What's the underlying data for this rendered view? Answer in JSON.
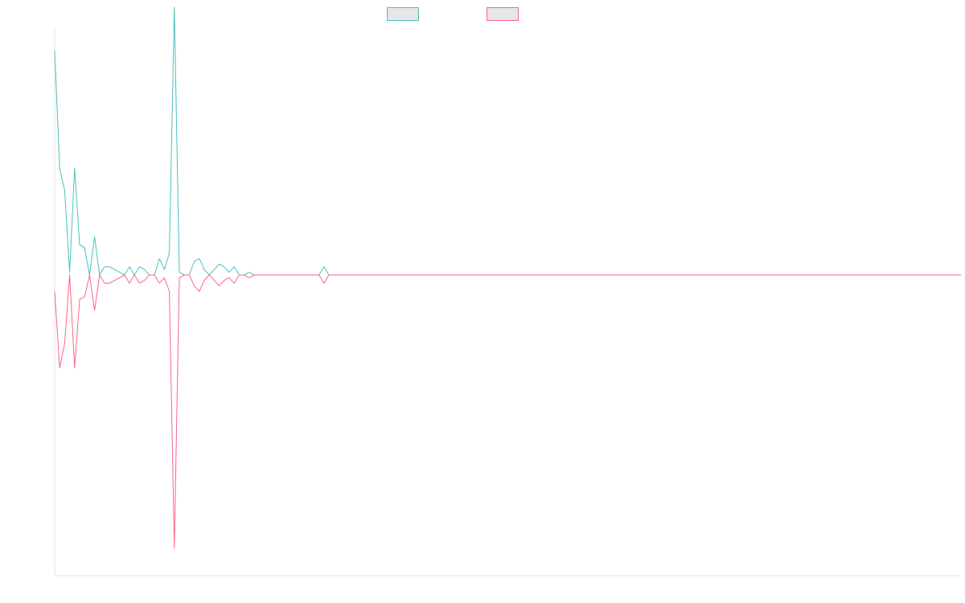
{
  "chart_data": {
    "type": "line",
    "title": "",
    "xlabel": "",
    "ylabel": "",
    "grid": false,
    "legend_position": "top-center",
    "x_start": 0,
    "ylim": [
      -55,
      45
    ],
    "series": [
      {
        "color": "#4bc0c0",
        "swatch_fill": "#e6e6e6",
        "values": [
          41,
          19.5,
          15.5,
          0.5,
          19.5,
          5.5,
          5,
          0,
          7,
          0,
          1.5,
          1.5,
          1,
          0.5,
          0,
          1.5,
          0,
          1.5,
          1,
          0,
          0,
          3,
          1,
          4,
          49,
          0.5,
          0,
          0,
          2.5,
          3,
          1,
          0,
          1,
          2,
          1.5,
          0.5,
          1.5,
          0,
          0,
          0.5,
          0,
          0,
          0,
          0,
          0,
          0,
          0,
          0,
          0,
          0,
          0,
          0,
          0,
          0,
          1.5,
          0,
          0,
          0,
          0,
          0,
          0,
          0,
          0,
          0,
          0,
          0,
          0,
          0,
          0,
          0,
          0,
          0,
          0,
          0,
          0,
          0,
          0,
          0,
          0,
          0,
          0,
          0,
          0,
          0,
          0,
          0,
          0,
          0,
          0,
          0,
          0,
          0,
          0,
          0,
          0,
          0,
          0,
          0,
          0,
          0,
          0,
          0,
          0,
          0,
          0,
          0,
          0,
          0,
          0,
          0,
          0,
          0,
          0,
          0,
          0,
          0,
          0,
          0,
          0,
          0,
          0,
          0,
          0,
          0,
          0,
          0,
          0,
          0,
          0,
          0,
          0,
          0,
          0,
          0,
          0,
          0,
          0,
          0,
          0,
          0,
          0,
          0,
          0,
          0,
          0,
          0,
          0,
          0,
          0,
          0,
          0,
          0,
          0,
          0,
          0,
          0,
          0,
          0,
          0,
          0,
          0,
          0,
          0,
          0,
          0,
          0,
          0,
          0,
          0,
          0,
          0,
          0,
          0,
          0,
          0,
          0,
          0
        ]
      },
      {
        "color": "#ff6384",
        "swatch_fill": "#e6e6e6",
        "values": [
          -3,
          -17,
          -12.5,
          0,
          -17,
          -4.5,
          -4,
          0,
          -6.5,
          0,
          -1.5,
          -1.5,
          -1,
          -0.5,
          0,
          -1.5,
          0,
          -1.5,
          -1,
          0,
          0,
          -1.5,
          -0.5,
          -3,
          -50,
          -0.5,
          0,
          0,
          -2,
          -3,
          -1,
          0,
          -1,
          -2,
          -1,
          -0.5,
          -1.5,
          0,
          0,
          -0.5,
          0,
          0,
          0,
          0,
          0,
          0,
          0,
          0,
          0,
          0,
          0,
          0,
          0,
          0,
          -1.5,
          0,
          0,
          0,
          0,
          0,
          0,
          0,
          0,
          0,
          0,
          0,
          0,
          0,
          0,
          0,
          0,
          0,
          0,
          0,
          0,
          0,
          0,
          0,
          0,
          0,
          0,
          0,
          0,
          0,
          0,
          0,
          0,
          0,
          0,
          0,
          0,
          0,
          0,
          0,
          0,
          0,
          0,
          0,
          0,
          0,
          0,
          0,
          0,
          0,
          0,
          0,
          0,
          0,
          0,
          0,
          0,
          0,
          0,
          0,
          0,
          0,
          0,
          0,
          0,
          0,
          0,
          0,
          0,
          0,
          0,
          0,
          0,
          0,
          0,
          0,
          0,
          0,
          0,
          0,
          0,
          0,
          0,
          0,
          0,
          0,
          0,
          0,
          0,
          0,
          0,
          0,
          0,
          0,
          0,
          0,
          0,
          0,
          0,
          0,
          0,
          0,
          0,
          0,
          0,
          0,
          0,
          0,
          0,
          0,
          0,
          0,
          0,
          0,
          0,
          0,
          0,
          0,
          0,
          0,
          0,
          0,
          0,
          0,
          0,
          0
        ]
      }
    ]
  }
}
